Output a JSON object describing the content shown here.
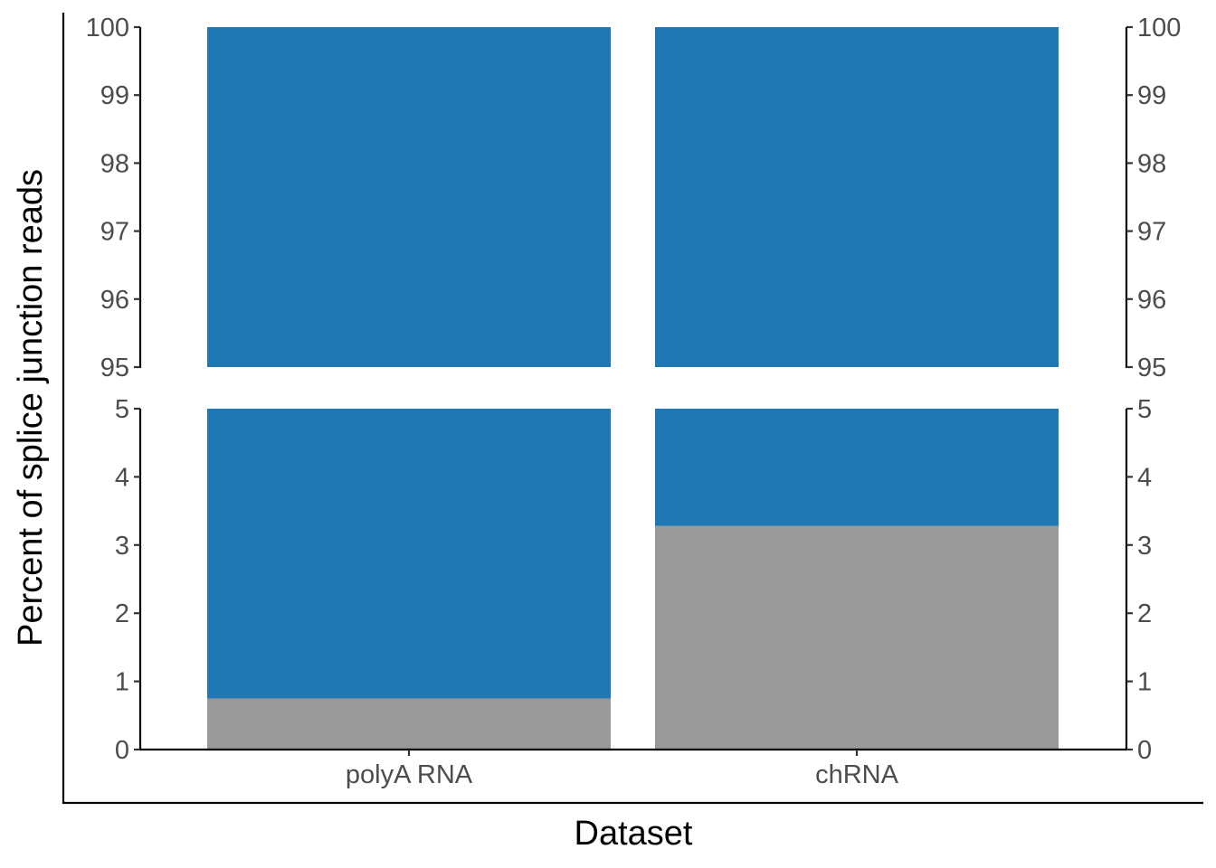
{
  "chart_data": {
    "type": "bar",
    "stacked": true,
    "broken_axis": true,
    "categories": [
      "polyA RNA",
      "chRNA"
    ],
    "series": [
      {
        "values": [
          0.75,
          3.28
        ],
        "color": "#999999"
      },
      {
        "values": [
          99.25,
          96.72
        ],
        "color": "#1f78b4"
      }
    ],
    "xlabel": "Dataset",
    "ylabel": "Percent of splice junction reads",
    "panels": [
      {
        "ylim": [
          0,
          5
        ],
        "ticks": [
          0,
          1,
          2,
          3,
          4,
          5
        ]
      },
      {
        "ylim": [
          95,
          100
        ],
        "ticks": [
          95,
          96,
          97,
          98,
          99,
          100
        ]
      }
    ],
    "secondary_y_axis": true,
    "grid": false,
    "legend": "none"
  }
}
